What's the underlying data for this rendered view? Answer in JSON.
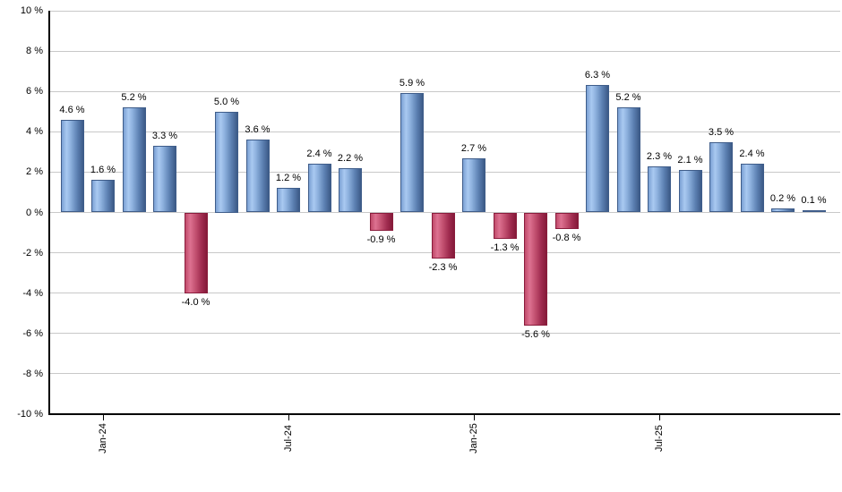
{
  "chart_data": {
    "type": "bar",
    "title": "",
    "xlabel": "",
    "ylabel": "",
    "grid": true,
    "legend": "none",
    "y_axis": {
      "unit": "%",
      "min": -10,
      "max": 10,
      "step": 2,
      "tick_labels": [
        "10 %",
        "8 %",
        "6 %",
        "4 %",
        "2 %",
        "0 %",
        "-2 %",
        "-4 %",
        "-6 %",
        "-8 %",
        "-10 %"
      ]
    },
    "x_axis": {
      "tick_labels": [
        "Jan-24",
        "Jul-24",
        "Jan-25",
        "Jul-25"
      ],
      "tick_bar_indices": [
        1,
        7,
        13,
        19
      ]
    },
    "values": [
      4.6,
      1.6,
      5.2,
      3.3,
      -4.0,
      5.0,
      3.6,
      1.2,
      2.4,
      2.2,
      -0.9,
      5.9,
      -2.3,
      2.7,
      -1.3,
      -5.6,
      -0.8,
      6.3,
      5.2,
      2.3,
      2.1,
      3.5,
      2.4,
      0.2,
      0.1
    ],
    "value_labels": [
      "4.6 %",
      "1.6 %",
      "5.2 %",
      "3.3 %",
      "-4.0 %",
      "5.0 %",
      "3.6 %",
      "1.2 %",
      "2.4 %",
      "2.2 %",
      "-0.9 %",
      "5.9 %",
      "-2.3 %",
      "2.7 %",
      "-1.3 %",
      "-5.6 %",
      "-0.8 %",
      "6.3 %",
      "5.2 %",
      "2.3 %",
      "2.1 %",
      "3.5 %",
      "2.4 %",
      "0.2 %",
      "0.1 %"
    ],
    "colors": {
      "positive_bar_main": "#8cb0dd",
      "positive_bar_dark": "#3c5a87",
      "positive_bar_light": "#a9c9f1",
      "negative_bar_main": "#c25070",
      "negative_bar_dark": "#851a39",
      "negative_bar_light": "#dd7291",
      "gridline": "#c8c8c8",
      "axis": "#000000",
      "label_text": "#000000",
      "background": "#ffffff"
    }
  }
}
